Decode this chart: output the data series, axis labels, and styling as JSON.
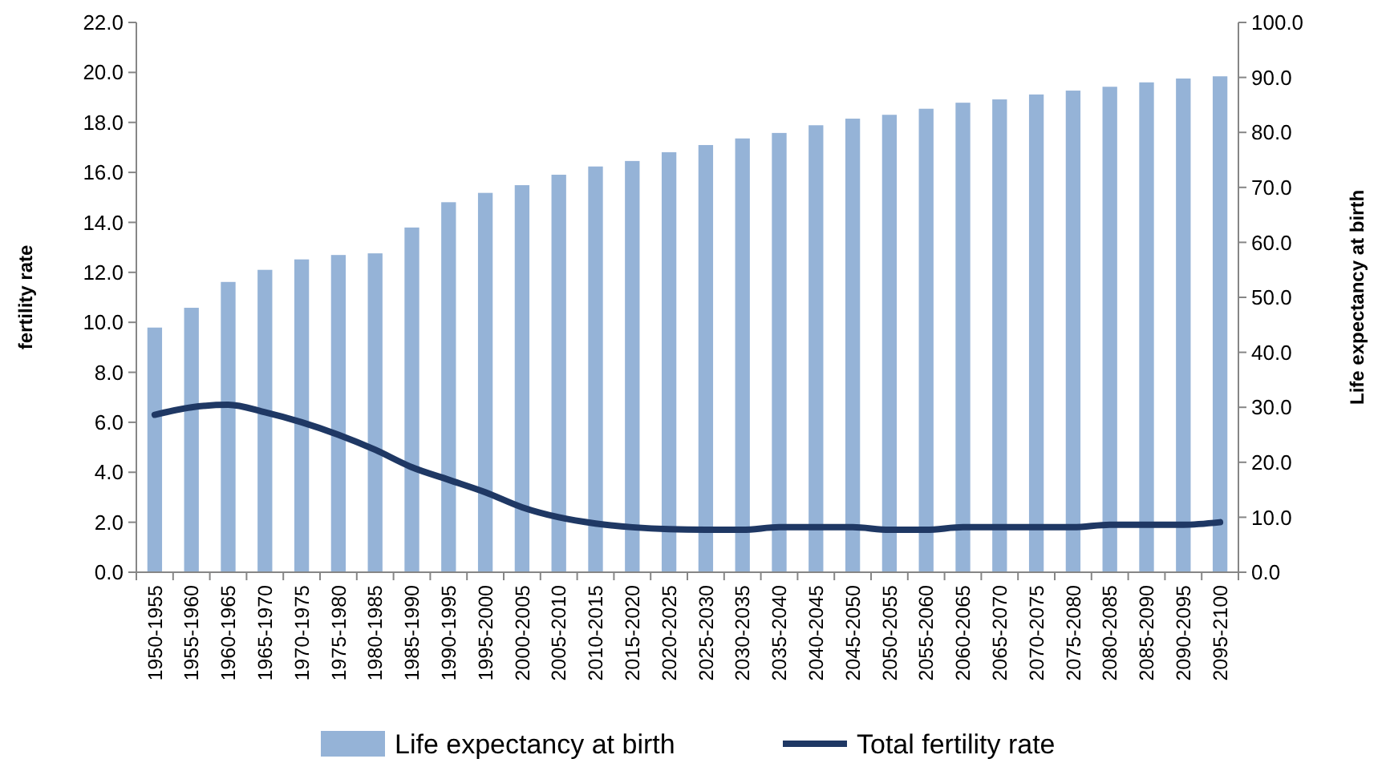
{
  "chart_data": {
    "type": "bar",
    "xlabel": null,
    "ylabel": "fertility rate",
    "y2label": "Life expectancy at birth",
    "categories": [
      "1950-1955",
      "1955-1960",
      "1960-1965",
      "1965-1970",
      "1970-1975",
      "1975-1980",
      "1980-1985",
      "1985-1990",
      "1990-1995",
      "1995-2000",
      "2000-2005",
      "2005-2010",
      "2010-2015",
      "2015-2020",
      "2020-2025",
      "2025-2030",
      "2030-2035",
      "2035-2040",
      "2040-2045",
      "2045-2050",
      "2050-2055",
      "2055-2060",
      "2060-2065",
      "2065-2070",
      "2070-2075",
      "2075-2080",
      "2080-2085",
      "2085-2090",
      "2090-2095",
      "2095-2100"
    ],
    "series": [
      {
        "name": "Life expectancy at birth",
        "axis": "y2",
        "color": "#95b3d7",
        "values": [
          44.5,
          48.1,
          52.8,
          55.0,
          56.9,
          57.7,
          58.0,
          62.7,
          67.3,
          69.0,
          70.4,
          72.3,
          73.8,
          74.8,
          76.4,
          77.7,
          78.9,
          79.9,
          81.3,
          82.5,
          83.2,
          84.3,
          85.4,
          86.0,
          86.9,
          87.6,
          88.3,
          89.1,
          89.8,
          90.2
        ]
      },
      {
        "name": "Total fertility rate",
        "type": "line",
        "axis": "y",
        "color": "#1f3864",
        "values": [
          6.3,
          6.6,
          6.7,
          6.4,
          6.0,
          5.5,
          4.9,
          4.2,
          3.7,
          3.2,
          2.6,
          2.2,
          1.95,
          1.8,
          1.72,
          1.7,
          1.7,
          1.8,
          1.8,
          1.8,
          1.7,
          1.7,
          1.8,
          1.8,
          1.8,
          1.8,
          1.9,
          1.9,
          1.9,
          2.0
        ]
      }
    ],
    "ylim": [
      0,
      22
    ],
    "yticks": [
      {
        "value": 0,
        "label": "0.0"
      },
      {
        "value": 2,
        "label": "2.0"
      },
      {
        "value": 4,
        "label": "4.0"
      },
      {
        "value": 6,
        "label": "6.0"
      },
      {
        "value": 8,
        "label": "8.0"
      },
      {
        "value": 10,
        "label": "10.0"
      },
      {
        "value": 12,
        "label": "12.0"
      },
      {
        "value": 14,
        "label": "14.0"
      },
      {
        "value": 16,
        "label": "16.0"
      },
      {
        "value": 18,
        "label": "18.0"
      },
      {
        "value": 20,
        "label": "20.0"
      },
      {
        "value": 22,
        "label": "22.0"
      }
    ],
    "y2lim": [
      0,
      100
    ],
    "y2ticks": [
      {
        "value": 0,
        "label": "0.0"
      },
      {
        "value": 10,
        "label": "10.0"
      },
      {
        "value": 20,
        "label": "20.0"
      },
      {
        "value": 30,
        "label": "30.0"
      },
      {
        "value": 40,
        "label": "40.0"
      },
      {
        "value": 50,
        "label": "50.0"
      },
      {
        "value": 60,
        "label": "60.0"
      },
      {
        "value": 70,
        "label": "70.0"
      },
      {
        "value": 80,
        "label": "80.0"
      },
      {
        "value": 90,
        "label": "90.0"
      },
      {
        "value": 100,
        "label": "100.0"
      }
    ],
    "grid": false,
    "legend": "bottom",
    "marker": "none",
    "line_style": "solid"
  }
}
